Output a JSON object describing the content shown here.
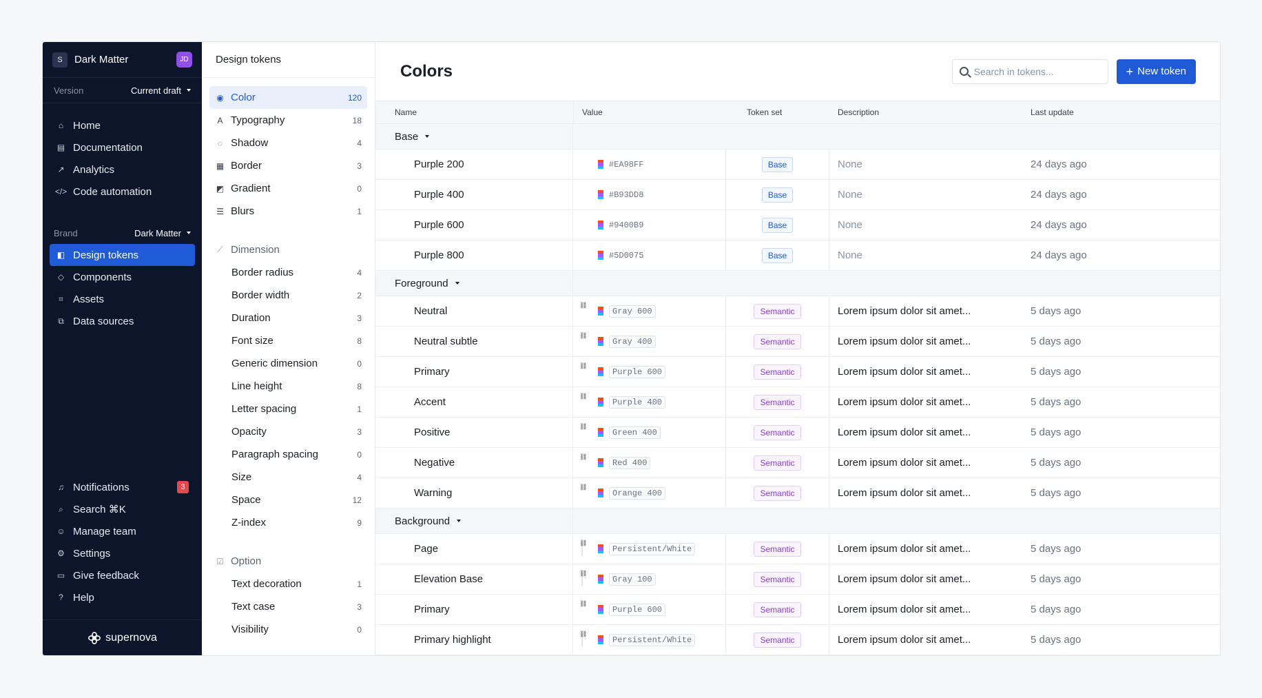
{
  "workspace": {
    "badge": "S",
    "name": "Dark Matter",
    "user_initials": "JD"
  },
  "version": {
    "label": "Version",
    "value": "Current draft"
  },
  "nav": [
    {
      "label": "Home",
      "icon": "home-icon",
      "glyph": "⌂"
    },
    {
      "label": "Documentation",
      "icon": "book-icon",
      "glyph": "▤"
    },
    {
      "label": "Analytics",
      "icon": "chart-icon",
      "glyph": "↗"
    },
    {
      "label": "Code automation",
      "icon": "code-icon",
      "glyph": "</>"
    }
  ],
  "brand": {
    "label": "Brand",
    "value": "Dark Matter"
  },
  "brand_nav": [
    {
      "label": "Design tokens",
      "icon": "tokens-icon",
      "glyph": "◧",
      "active": true
    },
    {
      "label": "Components",
      "icon": "components-icon",
      "glyph": "◇"
    },
    {
      "label": "Assets",
      "icon": "assets-icon",
      "glyph": "⌗"
    },
    {
      "label": "Data sources",
      "icon": "data-sources-icon",
      "glyph": "⧉"
    }
  ],
  "bottom_nav": [
    {
      "label": "Notifications",
      "icon": "bell-icon",
      "glyph": "♫",
      "badge": "3"
    },
    {
      "label": "Search ⌘K",
      "icon": "search-icon",
      "glyph": "⌕"
    },
    {
      "label": "Manage team",
      "icon": "team-icon",
      "glyph": "☺"
    },
    {
      "label": "Settings",
      "icon": "gear-icon",
      "glyph": "⚙"
    },
    {
      "label": "Give feedback",
      "icon": "feedback-icon",
      "glyph": "▭"
    },
    {
      "label": "Help",
      "icon": "help-icon",
      "glyph": "?"
    }
  ],
  "logo_text": "supernova",
  "panel": {
    "title": "Design tokens",
    "categories": [
      {
        "label": "Color",
        "count": "120",
        "icon": "palette-icon",
        "glyph": "◉",
        "active": true
      },
      {
        "label": "Typography",
        "count": "18",
        "icon": "typography-icon",
        "glyph": "A"
      },
      {
        "label": "Shadow",
        "count": "4",
        "icon": "shadow-icon",
        "glyph": "◌"
      },
      {
        "label": "Border",
        "count": "3",
        "icon": "border-icon",
        "glyph": "▦"
      },
      {
        "label": "Gradient",
        "count": "0",
        "icon": "gradient-icon",
        "glyph": "◩"
      },
      {
        "label": "Blurs",
        "count": "1",
        "icon": "blur-icon",
        "glyph": "☰"
      }
    ],
    "dimension_label": "Dimension",
    "dimension": [
      {
        "label": "Border radius",
        "count": "4"
      },
      {
        "label": "Border width",
        "count": "2"
      },
      {
        "label": "Duration",
        "count": "3"
      },
      {
        "label": "Font size",
        "count": "8"
      },
      {
        "label": "Generic dimension",
        "count": "0"
      },
      {
        "label": "Line height",
        "count": "8"
      },
      {
        "label": "Letter spacing",
        "count": "1"
      },
      {
        "label": "Opacity",
        "count": "3"
      },
      {
        "label": "Paragraph spacing",
        "count": "0"
      },
      {
        "label": "Size",
        "count": "4"
      },
      {
        "label": "Space",
        "count": "12"
      },
      {
        "label": "Z-index",
        "count": "9"
      }
    ],
    "option_label": "Option",
    "option": [
      {
        "label": "Text decoration",
        "count": "1"
      },
      {
        "label": "Text case",
        "count": "3"
      },
      {
        "label": "Visibility",
        "count": "0"
      }
    ]
  },
  "main": {
    "title": "Colors",
    "search_placeholder": "Search in tokens...",
    "new_button": "New token",
    "columns": {
      "name": "Name",
      "value": "Value",
      "set": "Token set",
      "desc": "Description",
      "updated": "Last update"
    },
    "groups": [
      {
        "name": "Base",
        "rows": [
          {
            "name": "Purple 200",
            "color": "#EA98FF",
            "value": "#EA98FF",
            "kind": "hex",
            "set": "Base",
            "desc": "None",
            "updated": "24 days ago"
          },
          {
            "name": "Purple 400",
            "color": "#B93DD8",
            "value": "#B93DD8",
            "kind": "hex",
            "set": "Base",
            "desc": "None",
            "updated": "24 days ago"
          },
          {
            "name": "Purple 600",
            "color": "#9400B9",
            "value": "#9400B9",
            "kind": "hex",
            "set": "Base",
            "desc": "None",
            "updated": "24 days ago"
          },
          {
            "name": "Purple 800",
            "color": "#5D0075",
            "value": "#5D0075",
            "kind": "hex",
            "set": "Base",
            "desc": "None",
            "updated": "24 days ago"
          }
        ]
      },
      {
        "name": "Foreground",
        "rows": [
          {
            "name": "Neutral",
            "color": "#9a98a3",
            "value": "Gray 600",
            "kind": "alias",
            "set": "Semantic",
            "desc": "Lorem ipsum dolor sit amet...",
            "updated": "5 days ago"
          },
          {
            "name": "Neutral subtle",
            "color": "#d2cfd9",
            "value": "Gray 400",
            "kind": "alias",
            "set": "Semantic",
            "desc": "Lorem ipsum dolor sit amet...",
            "updated": "5 days ago"
          },
          {
            "name": "Primary",
            "color": "#9400B9",
            "value": "Purple 600",
            "kind": "alias",
            "set": "Semantic",
            "desc": "Lorem ipsum dolor sit amet...",
            "updated": "5 days ago"
          },
          {
            "name": "Accent",
            "color": "#B93DD8",
            "value": "Purple 400",
            "kind": "alias",
            "set": "Semantic",
            "desc": "Lorem ipsum dolor sit amet...",
            "updated": "5 days ago"
          },
          {
            "name": "Positive",
            "color": "#2f9e6b",
            "value": "Green 400",
            "kind": "alias",
            "set": "Semantic",
            "desc": "Lorem ipsum dolor sit amet...",
            "updated": "5 days ago"
          },
          {
            "name": "Negative",
            "color": "#d9425b",
            "value": "Red 400",
            "kind": "alias",
            "set": "Semantic",
            "desc": "Lorem ipsum dolor sit amet...",
            "updated": "5 days ago"
          },
          {
            "name": "Warning",
            "color": "#ef8a2b",
            "value": "Orange 400",
            "kind": "alias",
            "set": "Semantic",
            "desc": "Lorem ipsum dolor sit amet...",
            "updated": "5 days ago"
          }
        ]
      },
      {
        "name": "Background",
        "rows": [
          {
            "name": "Page",
            "color": "#ffffff",
            "value": "Persistent/White",
            "kind": "alias",
            "set": "Semantic",
            "desc": "Lorem ipsum dolor sit amet...",
            "updated": "5 days ago"
          },
          {
            "name": "Elevation Base",
            "color": "#f2f2f4",
            "value": "Gray 100",
            "kind": "alias",
            "set": "Semantic",
            "desc": "Lorem ipsum dolor sit amet...",
            "updated": "5 days ago"
          },
          {
            "name": "Primary",
            "color": "#9400B9",
            "value": "Purple 600",
            "kind": "alias",
            "set": "Semantic",
            "desc": "Lorem ipsum dolor sit amet...",
            "updated": "5 days ago"
          },
          {
            "name": "Primary highlight",
            "color": "#ffffff",
            "value": "Persistent/White",
            "kind": "alias",
            "set": "Semantic",
            "desc": "Lorem ipsum dolor sit amet...",
            "updated": "5 days ago"
          }
        ]
      }
    ]
  }
}
